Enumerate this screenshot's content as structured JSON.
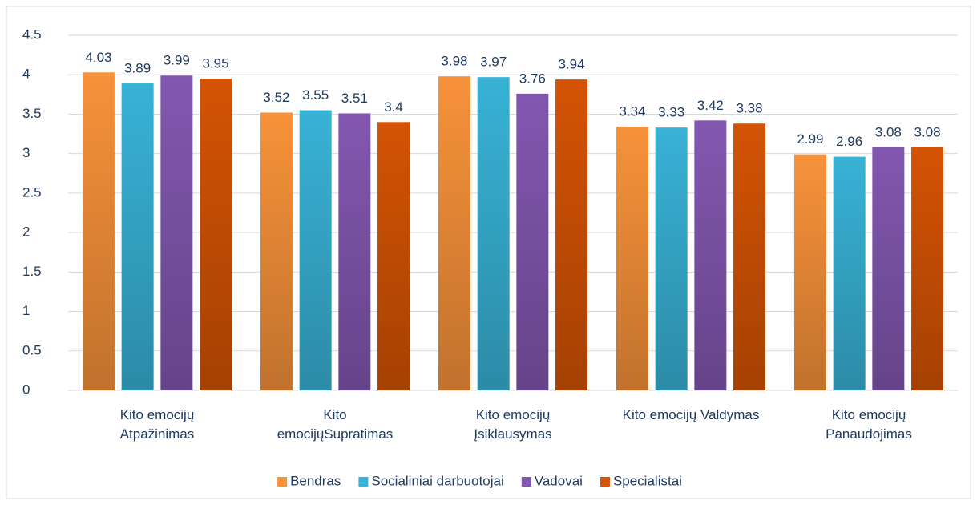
{
  "chart_data": {
    "type": "bar",
    "categories": [
      "Kito emocijų\nAtpažinimas",
      "Kito\nemocijųSupratimas",
      "Kito emocijų\nĮsiklausymas",
      "Kito emocijų Valdymas",
      "Kito emocijų\nPanaudojimas"
    ],
    "series": [
      {
        "name": "Bendras",
        "color": "#f7923a",
        "values": [
          4.03,
          3.52,
          3.98,
          3.34,
          2.99
        ]
      },
      {
        "name": "Socialiniai darbuotojai",
        "color": "#38b2d6",
        "values": [
          3.89,
          3.55,
          3.97,
          3.33,
          2.96
        ]
      },
      {
        "name": "Vadovai",
        "color": "#8357b0",
        "values": [
          3.99,
          3.51,
          3.76,
          3.42,
          3.08
        ]
      },
      {
        "name": "Specialistai",
        "color": "#d45304",
        "values": [
          3.95,
          3.4,
          3.94,
          3.38,
          3.08
        ]
      }
    ],
    "ylim": [
      0,
      4.5
    ],
    "yticks": [
      0,
      0.5,
      1,
      1.5,
      2,
      2.5,
      3,
      3.5,
      4,
      4.5
    ],
    "grid": true,
    "legend": "bottom"
  }
}
